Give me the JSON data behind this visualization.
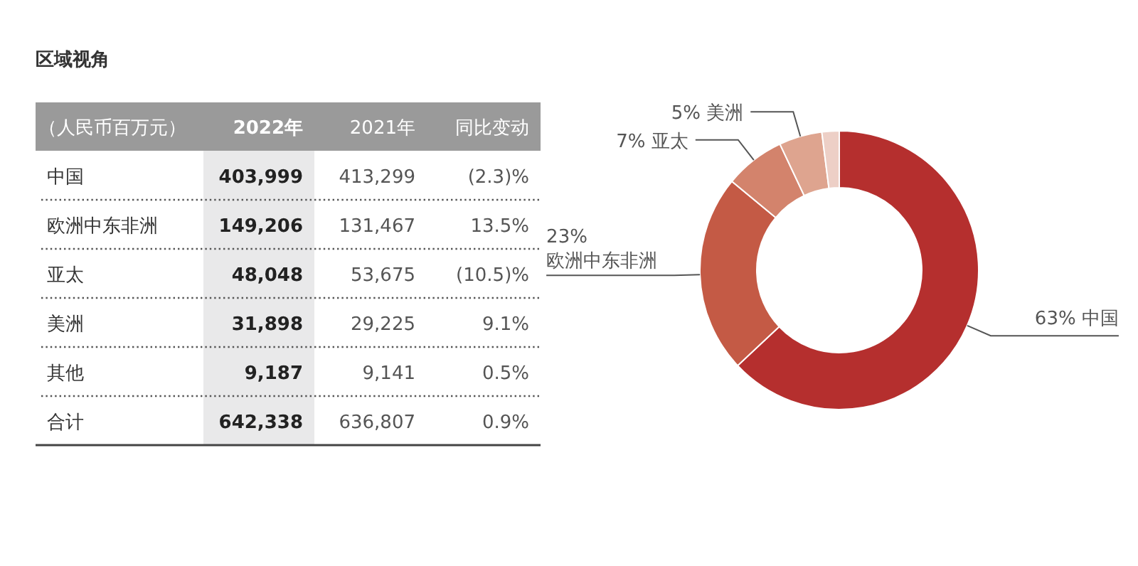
{
  "chart_data": [
    {
      "type": "heatmap",
      "title": "区域视角",
      "ylabel": "（人民币百万元）",
      "categories": [
        "2022年",
        "2021年",
        "同比变动"
      ],
      "y_categories": [
        "中国",
        "欧洲中东非洲",
        "亚太",
        "美洲",
        "其他",
        "合计"
      ],
      "cells": [
        [
          403999,
          413299,
          -2.3
        ],
        [
          149206,
          131467,
          13.5
        ],
        [
          48048,
          53675,
          -10.5
        ],
        [
          31898,
          29225,
          9.1
        ],
        [
          9187,
          9141,
          0.5
        ],
        [
          642338,
          636807,
          0.9
        ]
      ],
      "cell_labels": [
        [
          "403,999",
          "413,299",
          "(2.3)%"
        ],
        [
          "149,206",
          "131,467",
          "13.5%"
        ],
        [
          "48,048",
          "53,675",
          "(10.5)%"
        ],
        [
          "31,898",
          "29,225",
          "9.1%"
        ],
        [
          "9,187",
          "9,141",
          "0.5%"
        ],
        [
          "642,338",
          "636,807",
          "0.9%"
        ]
      ]
    },
    {
      "type": "donut",
      "categories": [
        "中国",
        "欧洲中东非洲",
        "亚太",
        "美洲",
        null
      ],
      "values": [
        63,
        23,
        7,
        5,
        2
      ],
      "value_labels": [
        "63%",
        "23%",
        "7%",
        "5%",
        null
      ],
      "colors": [
        "#b52f2e",
        "#c45a45",
        "#d3836c",
        "#dea48f",
        "#edcfc6"
      ]
    }
  ]
}
